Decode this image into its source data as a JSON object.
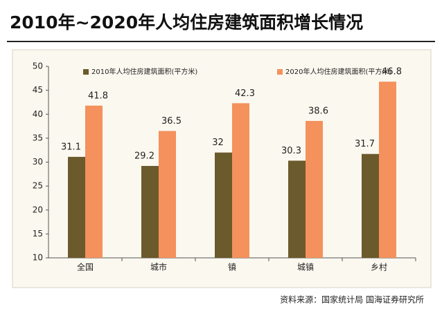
{
  "chart_data": {
    "type": "bar",
    "title": "2010年~2020年人均住房建筑面积增长情况",
    "categories": [
      "全国",
      "城市",
      "镇",
      "城镇",
      "乡村"
    ],
    "series": [
      {
        "name": "2010年人均住房建筑面积(平方米)",
        "color": "#6b5a2c",
        "values": [
          31.1,
          29.2,
          32,
          30.3,
          31.7
        ]
      },
      {
        "name": "2020年人均住房建筑面积(平方米)",
        "color": "#f4915c",
        "values": [
          41.8,
          36.5,
          42.3,
          38.6,
          46.8
        ]
      }
    ],
    "ylim": [
      10,
      50
    ],
    "yticks": [
      10,
      15,
      20,
      25,
      30,
      35,
      40,
      45,
      50
    ],
    "source": "资料来源：国家统计局 国海证券研究所"
  }
}
